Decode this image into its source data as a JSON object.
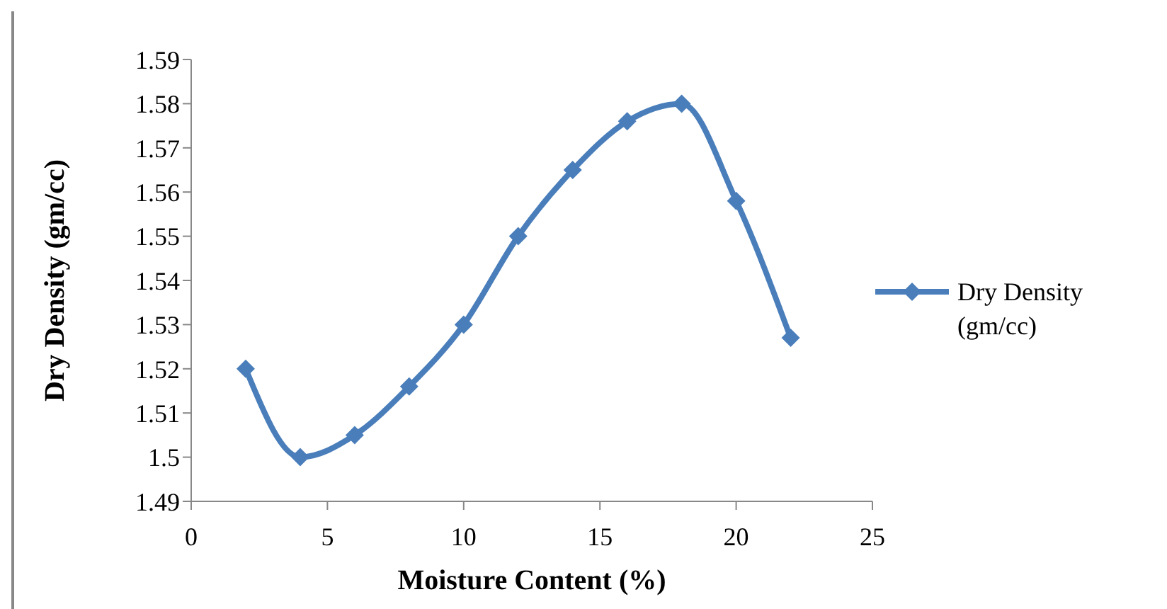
{
  "chart_data": {
    "type": "line",
    "xlabel": "Moisture Content (%)",
    "ylabel": "Dry Density (gm/cc)",
    "x": [
      2,
      4,
      6,
      8,
      10,
      12,
      14,
      16,
      18,
      20,
      22
    ],
    "series": [
      {
        "name": "Dry Density (gm/cc)",
        "color": "#4a7ebb",
        "values": [
          1.52,
          1.5,
          1.505,
          1.516,
          1.53,
          1.55,
          1.565,
          1.576,
          1.58,
          1.558,
          1.527
        ]
      }
    ],
    "xlim": [
      0,
      25
    ],
    "xticks": [
      0,
      5,
      10,
      15,
      20,
      25
    ],
    "ylim": [
      1.49,
      1.59
    ],
    "yticks": [
      1.49,
      1.5,
      1.51,
      1.52,
      1.53,
      1.54,
      1.55,
      1.56,
      1.57,
      1.58,
      1.59
    ],
    "grid": false,
    "legend": "right",
    "marker": "diamond",
    "line_style": "solid"
  }
}
